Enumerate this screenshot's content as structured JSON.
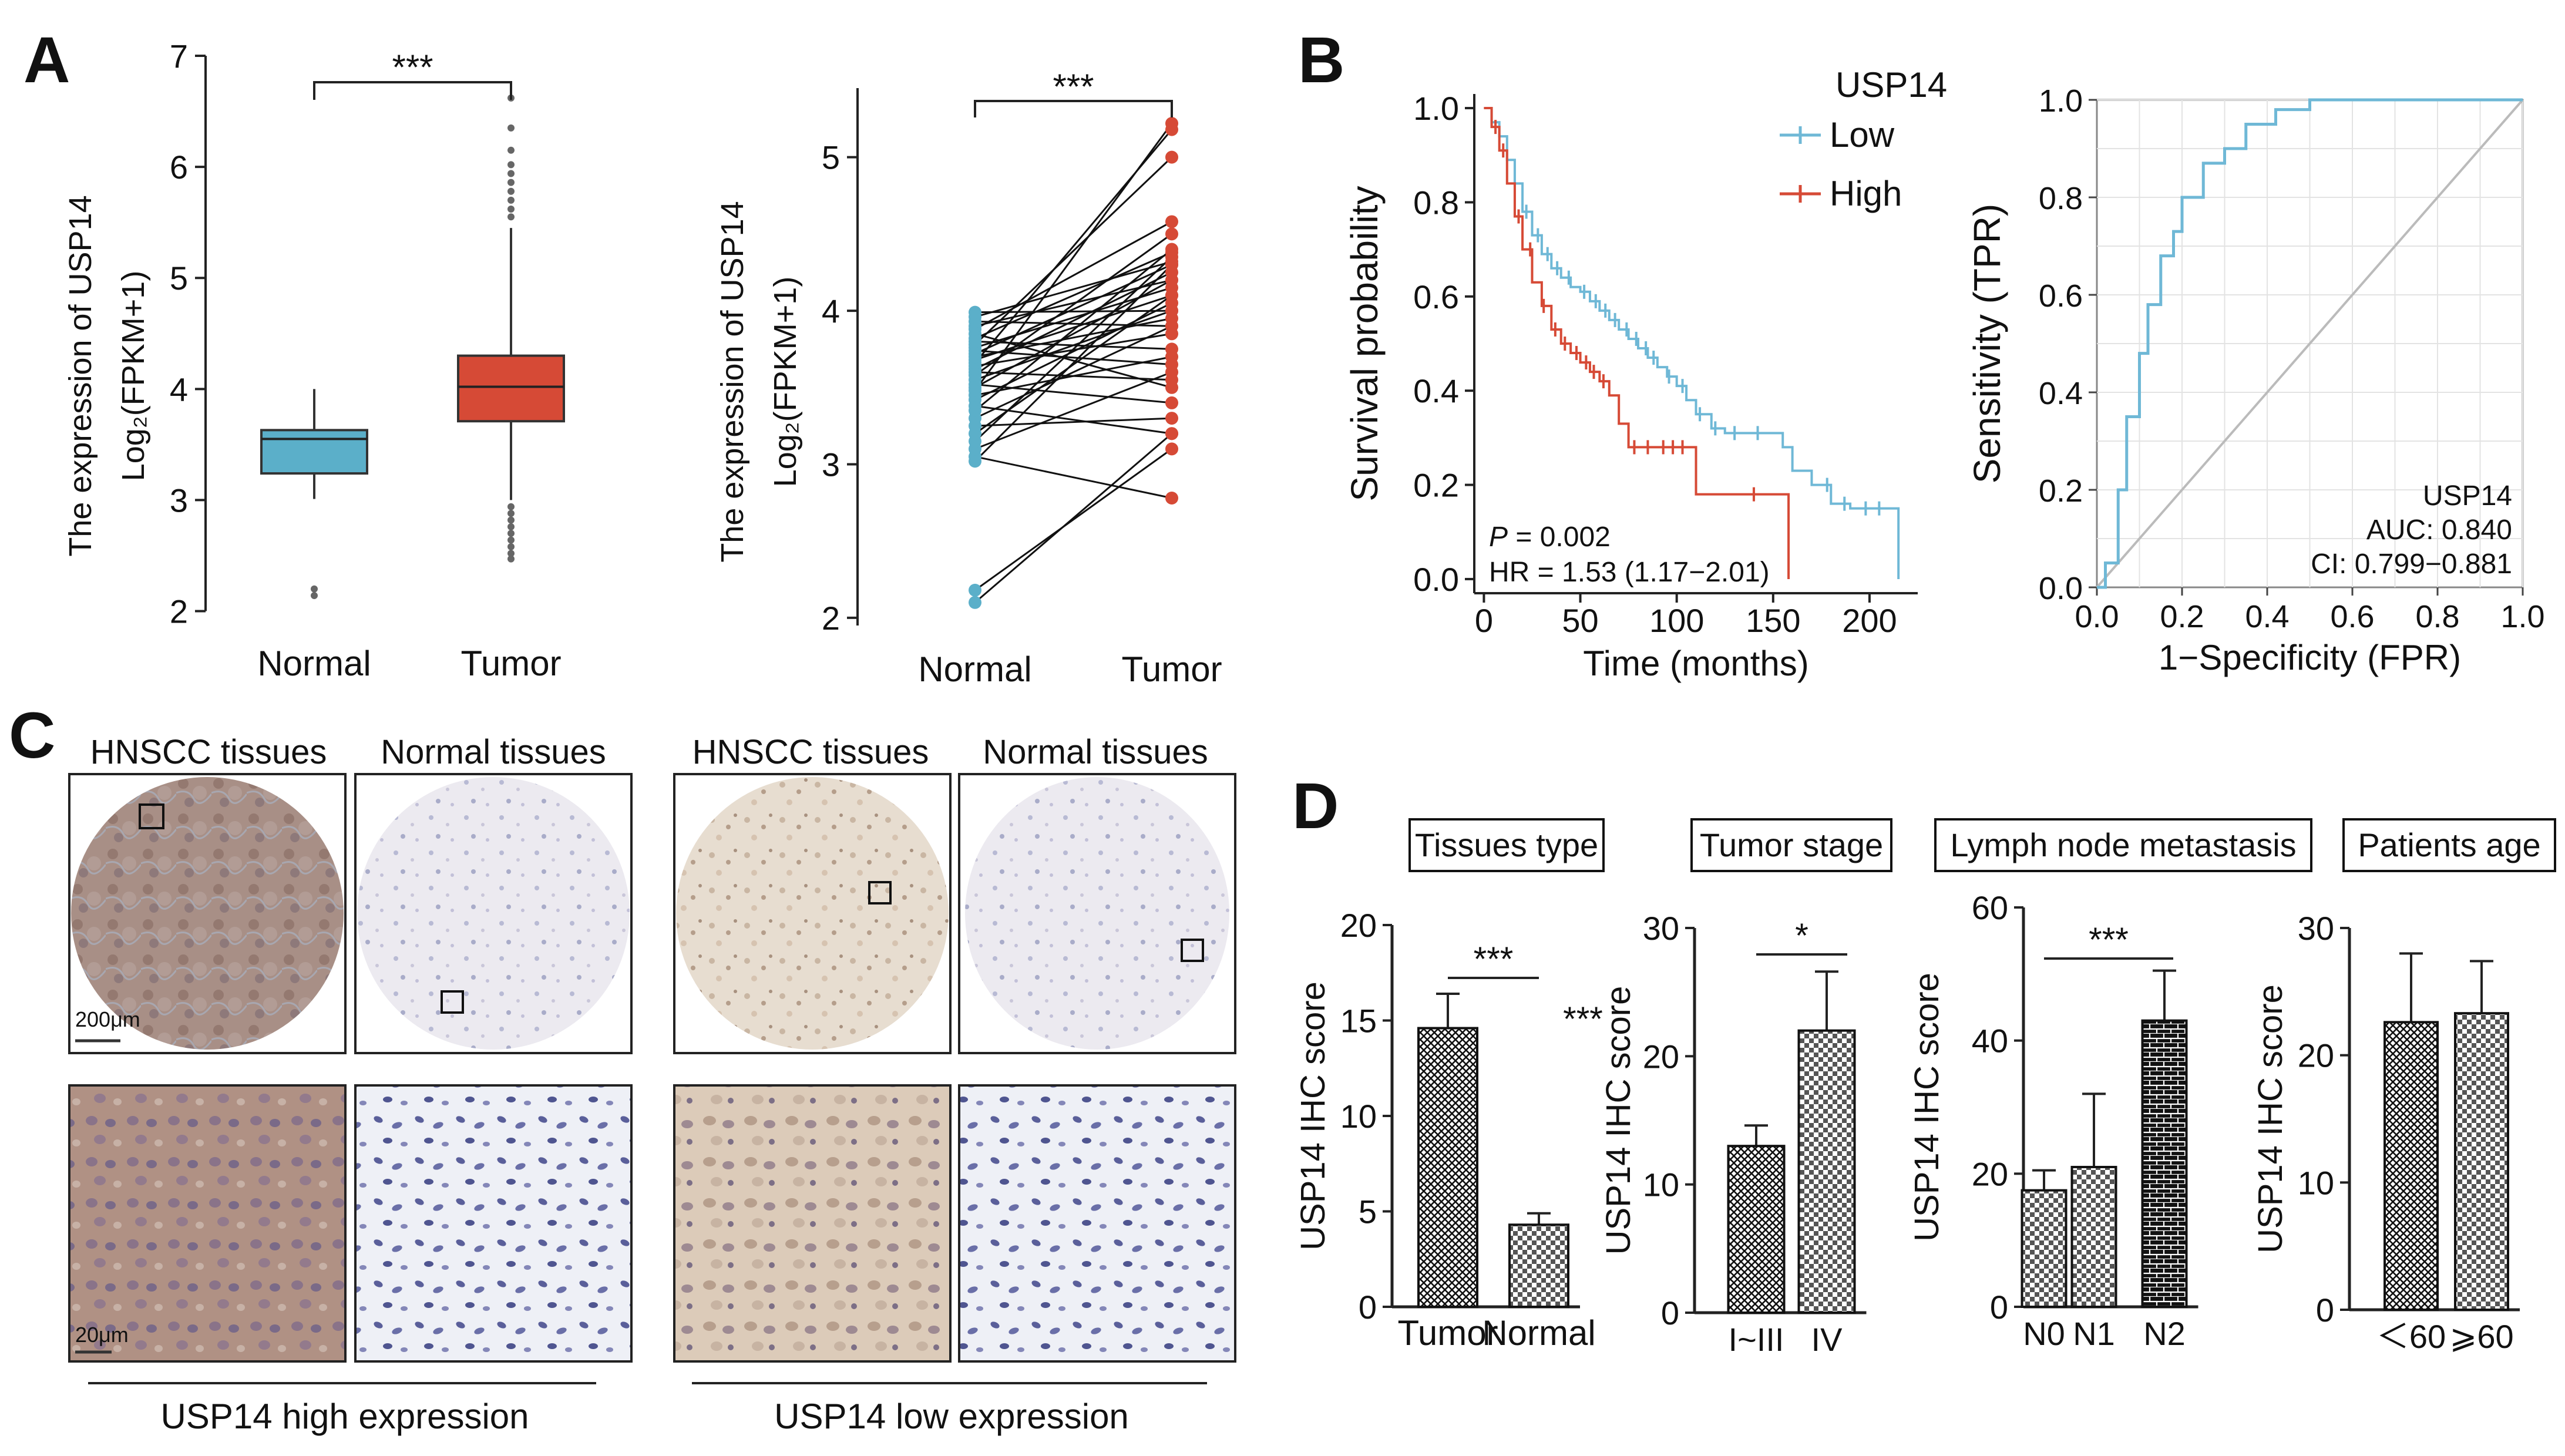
{
  "panels": {
    "A": "A",
    "B": "B",
    "C": "C",
    "D": "D"
  },
  "colors": {
    "normal": "#5bafc9",
    "tumor": "#d64a36",
    "low": "#6fb8d6",
    "high": "#d64a36",
    "roc": "#6fb8d6",
    "diag": "#bbbbbb"
  },
  "chart_data": [
    {
      "id": "A1",
      "type": "box",
      "categories": [
        "Normal",
        "Tumor"
      ],
      "ylabel_lines": [
        "The expression of USP14",
        "Log₂(FPKM+1)"
      ],
      "ylim": [
        1.95,
        7
      ],
      "yticks": [
        2,
        3,
        4,
        5,
        6,
        7
      ],
      "significance": "***",
      "boxes": [
        {
          "q1": 3.24,
          "median": 3.55,
          "q3": 3.63,
          "whisker_low": 3.01,
          "whisker_high": 4.0,
          "outliers": [
            2.14,
            2.2
          ]
        },
        {
          "q1": 3.71,
          "median": 4.02,
          "q3": 4.3,
          "whisker_low": 3.0,
          "whisker_high": 5.45,
          "outliers": [
            2.47,
            2.52,
            2.58,
            2.64,
            2.7,
            2.76,
            2.82,
            2.88,
            2.94,
            5.55,
            5.62,
            5.7,
            5.78,
            5.86,
            5.94,
            6.02,
            6.15,
            6.35,
            6.62
          ]
        }
      ]
    },
    {
      "id": "A2",
      "type": "paired",
      "categories": [
        "Normal",
        "Tumor"
      ],
      "ylabel_lines": [
        "The expression of USP14",
        "Log₂(FPKM+1)"
      ],
      "ylim": [
        1.95,
        5.45
      ],
      "yticks": [
        2,
        3,
        4,
        5
      ],
      "significance": "***",
      "pairs": [
        [
          2.1,
          3.2
        ],
        [
          2.18,
          3.1
        ],
        [
          3.02,
          4.3
        ],
        [
          3.05,
          2.78
        ],
        [
          3.1,
          3.6
        ],
        [
          3.15,
          4.35
        ],
        [
          3.2,
          4.1
        ],
        [
          3.25,
          3.3
        ],
        [
          3.3,
          3.9
        ],
        [
          3.35,
          4.4
        ],
        [
          3.38,
          3.2
        ],
        [
          3.42,
          4.05
        ],
        [
          3.45,
          3.7
        ],
        [
          3.48,
          5.22
        ],
        [
          3.5,
          4.2
        ],
        [
          3.52,
          3.4
        ],
        [
          3.55,
          4.0
        ],
        [
          3.58,
          4.5
        ],
        [
          3.6,
          3.55
        ],
        [
          3.62,
          4.25
        ],
        [
          3.64,
          3.85
        ],
        [
          3.66,
          5.18
        ],
        [
          3.68,
          4.1
        ],
        [
          3.7,
          3.95
        ],
        [
          3.72,
          4.3
        ],
        [
          3.74,
          3.65
        ],
        [
          3.76,
          4.15
        ],
        [
          3.78,
          5.0
        ],
        [
          3.8,
          3.75
        ],
        [
          3.82,
          4.38
        ],
        [
          3.85,
          3.5
        ],
        [
          3.88,
          4.58
        ],
        [
          3.9,
          4.2
        ],
        [
          3.93,
          3.9
        ],
        [
          3.96,
          4.32
        ],
        [
          3.99,
          4.0
        ]
      ]
    },
    {
      "id": "B1",
      "type": "line",
      "subtype": "kaplan-meier",
      "xlabel": "Time (months)",
      "ylabel": "Survival probability",
      "xlim": [
        -5,
        225
      ],
      "ylim": [
        -0.03,
        1.03
      ],
      "xticks": [
        0,
        50,
        100,
        150,
        200
      ],
      "yticks": [
        0.0,
        0.2,
        0.4,
        0.6,
        0.8,
        1.0
      ],
      "legend_title": "USP14",
      "annotation_p": "P = 0.002",
      "annotation_hr": "HR = 1.53 (1.17−2.01)",
      "series": [
        {
          "name": "Low",
          "x": [
            0,
            4,
            8,
            12,
            16,
            20,
            25,
            30,
            35,
            40,
            45,
            50,
            55,
            60,
            65,
            70,
            75,
            80,
            85,
            90,
            95,
            100,
            105,
            110,
            118,
            125,
            135,
            145,
            150,
            155,
            160,
            170,
            180,
            190,
            200,
            210,
            215
          ],
          "y": [
            1.0,
            0.97,
            0.94,
            0.89,
            0.84,
            0.78,
            0.73,
            0.69,
            0.66,
            0.64,
            0.62,
            0.61,
            0.59,
            0.57,
            0.55,
            0.53,
            0.51,
            0.49,
            0.47,
            0.45,
            0.43,
            0.41,
            0.38,
            0.35,
            0.32,
            0.31,
            0.31,
            0.31,
            0.31,
            0.28,
            0.23,
            0.2,
            0.16,
            0.15,
            0.15,
            0.15,
            0.0
          ],
          "censor_x": [
            22,
            28,
            33,
            38,
            44,
            52,
            58,
            63,
            68,
            74,
            79,
            84,
            88,
            96,
            103,
            112,
            120,
            130,
            142,
            178,
            187,
            198,
            205
          ]
        },
        {
          "name": "High",
          "x": [
            0,
            4,
            8,
            12,
            16,
            20,
            25,
            30,
            35,
            40,
            45,
            50,
            55,
            60,
            65,
            70,
            75,
            80,
            90,
            100,
            110,
            115,
            130,
            145,
            150,
            158
          ],
          "y": [
            1.0,
            0.96,
            0.91,
            0.84,
            0.77,
            0.7,
            0.63,
            0.58,
            0.53,
            0.5,
            0.48,
            0.46,
            0.44,
            0.42,
            0.39,
            0.33,
            0.28,
            0.28,
            0.28,
            0.28,
            0.18,
            0.18,
            0.18,
            0.18,
            0.18,
            0.0
          ],
          "censor_x": [
            6,
            10,
            18,
            24,
            31,
            37,
            42,
            48,
            53,
            57,
            62,
            78,
            85,
            93,
            98,
            103,
            140
          ]
        }
      ]
    },
    {
      "id": "B2",
      "type": "line",
      "subtype": "roc",
      "xlabel": "1−Specificity (FPR)",
      "ylabel": "Sensitivity (TPR)",
      "xlim": [
        0,
        1
      ],
      "ylim": [
        0,
        1
      ],
      "xticks": [
        0.0,
        0.2,
        0.4,
        0.6,
        0.8,
        1.0
      ],
      "yticks": [
        0.0,
        0.2,
        0.4,
        0.6,
        0.8,
        1.0
      ],
      "grid": true,
      "annotation_lines": [
        "USP14",
        "AUC: 0.840",
        "CI: 0.799−0.881"
      ],
      "series": [
        {
          "name": "USP14",
          "x": [
            0,
            0.02,
            0.02,
            0.05,
            0.05,
            0.07,
            0.07,
            0.1,
            0.1,
            0.12,
            0.12,
            0.15,
            0.15,
            0.18,
            0.18,
            0.2,
            0.2,
            0.25,
            0.25,
            0.3,
            0.3,
            0.35,
            0.35,
            0.42,
            0.42,
            0.5,
            0.5,
            1.0
          ],
          "y": [
            0,
            0,
            0.05,
            0.05,
            0.2,
            0.2,
            0.35,
            0.35,
            0.48,
            0.48,
            0.58,
            0.58,
            0.68,
            0.68,
            0.73,
            0.73,
            0.8,
            0.8,
            0.87,
            0.87,
            0.9,
            0.9,
            0.95,
            0.95,
            0.98,
            0.98,
            1.0,
            1.0
          ]
        }
      ]
    },
    {
      "id": "D1",
      "type": "bar",
      "title": "Tissues type",
      "categories": [
        "Tumor",
        "Normal"
      ],
      "values": [
        14.6,
        4.3
      ],
      "errors": [
        1.8,
        0.6
      ],
      "patterns": [
        "cross",
        "check"
      ],
      "ylabel": "USP14 IHC score",
      "ylim": [
        0,
        20
      ],
      "yticks": [
        0,
        5,
        10,
        15,
        20
      ],
      "significance": "***",
      "extra_annotation": "***"
    },
    {
      "id": "D2",
      "type": "bar",
      "title": "Tumor stage",
      "categories": [
        "I~III",
        "IV"
      ],
      "values": [
        13.0,
        22.0
      ],
      "errors": [
        1.6,
        4.6
      ],
      "patterns": [
        "cross",
        "check"
      ],
      "ylabel": "USP14 IHC score",
      "ylim": [
        0,
        30
      ],
      "yticks": [
        0,
        10,
        20,
        30
      ],
      "significance": "*"
    },
    {
      "id": "D3",
      "type": "bar",
      "title": "Lymph node metastasis",
      "categories": [
        "N0",
        "N1",
        "N2"
      ],
      "values": [
        17.5,
        21.0,
        43.0
      ],
      "errors": [
        3.0,
        11.0,
        7.5
      ],
      "patterns": [
        "check",
        "check",
        "brick"
      ],
      "ylabel": "USP14 IHC score",
      "ylim": [
        0,
        60
      ],
      "yticks": [
        0,
        20,
        40,
        60
      ],
      "significance": "***"
    },
    {
      "id": "D4",
      "type": "bar",
      "title": "Patients age",
      "categories": [
        "＜60",
        "⩾60"
      ],
      "values": [
        22.6,
        23.3
      ],
      "errors": [
        5.4,
        4.1
      ],
      "patterns": [
        "cross",
        "check"
      ],
      "ylabel": "USP14 IHC score",
      "ylim": [
        0,
        30
      ],
      "yticks": [
        0,
        10,
        20,
        30
      ]
    }
  ],
  "ihc": {
    "headers": [
      "HNSCC tissues",
      "Normal tissues",
      "HNSCC tissues",
      "Normal tissues"
    ],
    "scale_top": "200μm",
    "scale_bottom": "20μm",
    "group_labels": [
      "USP14 high expression",
      "USP14 low expression"
    ]
  }
}
